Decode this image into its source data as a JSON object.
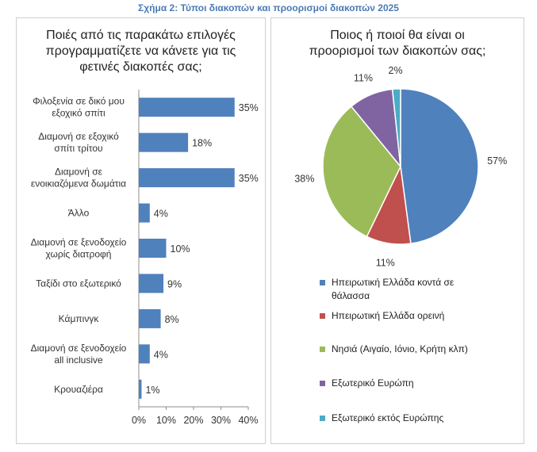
{
  "figure_title": "Σχήμα 2: Τύποι διακοπών και προορισμοί διακοπών 2025",
  "colors": {
    "bar": "#4f81bd",
    "pie": [
      "#4f81bd",
      "#c0504d",
      "#9bbb59",
      "#8064a2",
      "#4bacc6"
    ]
  },
  "chart_data": [
    {
      "type": "bar",
      "orientation": "horizontal",
      "title": "Ποιές από τις παρακάτω επιλογές\nπρογραμματίζετε να κάνετε για τις\nφετινές διακοπές σας;",
      "categories": [
        "Φιλοξενία σε δικό μου\nεξοχικό σπίτι",
        "Διαμονή σε εξοχικό\nσπίτι τρίτου",
        "Διαμονή σε\nενοικιαζόμενα δωμάτια",
        "Άλλο",
        "Διαμονή σε ξενοδοχείο\nχωρίς διατροφή",
        "Ταξίδι στο εξωτερικό",
        "Κάμπινγκ",
        "Διαμονή σε ξενοδοχείο\nall inclusive",
        "Κρουαζιέρα"
      ],
      "values": [
        35,
        18,
        35,
        4,
        10,
        9,
        8,
        4,
        1
      ],
      "data_labels": [
        "35%",
        "18%",
        "35%",
        "4%",
        "10%",
        "9%",
        "8%",
        "4%",
        "1%"
      ],
      "xlim": [
        0,
        40
      ],
      "xticks": [
        0,
        10,
        20,
        30,
        40
      ],
      "xtick_labels": [
        "0%",
        "10%",
        "20%",
        "30%",
        "40%"
      ],
      "grid": false
    },
    {
      "type": "pie",
      "title": "Ποιος ή ποιοί θα είναι οι\nπροορισμοί των διακοπών σας;",
      "labels": [
        "Ηπειρωτική Ελλάδα κοντά σε\nθάλασσα",
        "Ηπειρωτική Ελλάδα ορεινή",
        "Νησιά (Αιγαίο, Ιόνιο, Κρήτη κλπ)",
        "Εξωτερικό Ευρώπη",
        "Εξωτερικό εκτός Ευρώπης"
      ],
      "values": [
        57,
        11,
        38,
        11,
        2
      ],
      "data_labels": [
        "57%",
        "11%",
        "38%",
        "11%",
        "2%"
      ],
      "legend_position": "bottom"
    }
  ]
}
